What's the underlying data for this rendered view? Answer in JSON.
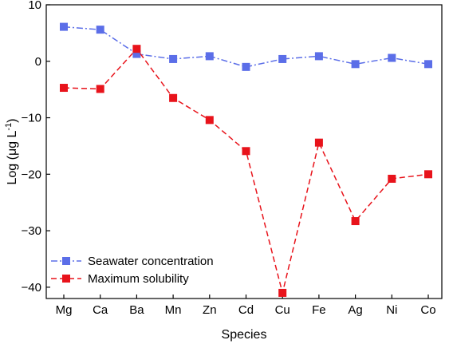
{
  "chart_data": {
    "type": "line",
    "categories": [
      "Mg",
      "Ca",
      "Ba",
      "Mn",
      "Zn",
      "Cd",
      "Cu",
      "Fe",
      "Ag",
      "Ni",
      "Co"
    ],
    "xlabel": "Species",
    "ylabel_main": "Log (μg L",
    "ylabel_sup": "-1",
    "ylabel_close": ")",
    "ylim": [
      -42,
      10
    ],
    "yticks": [
      10,
      0,
      -10,
      -20,
      -30,
      -40
    ],
    "ytick_labels": [
      "10",
      "0",
      "−10",
      "−20",
      "−30",
      "−40"
    ],
    "grid": false,
    "legend_position": "bottom-left",
    "series": [
      {
        "name": "Seawater concentration",
        "color": "#5b6ee8",
        "marker": "square",
        "line_style": "dash-dot",
        "values": [
          6.1,
          5.6,
          1.3,
          0.4,
          0.9,
          -1.0,
          0.4,
          0.9,
          -0.5,
          0.6,
          -0.5
        ]
      },
      {
        "name": "Maximum solubility",
        "color": "#e8131b",
        "marker": "square",
        "line_style": "dashed",
        "values": [
          -4.7,
          -4.9,
          2.2,
          -6.5,
          -10.4,
          -15.9,
          -41.0,
          -14.4,
          -28.3,
          -20.8,
          -20.0
        ]
      }
    ]
  }
}
